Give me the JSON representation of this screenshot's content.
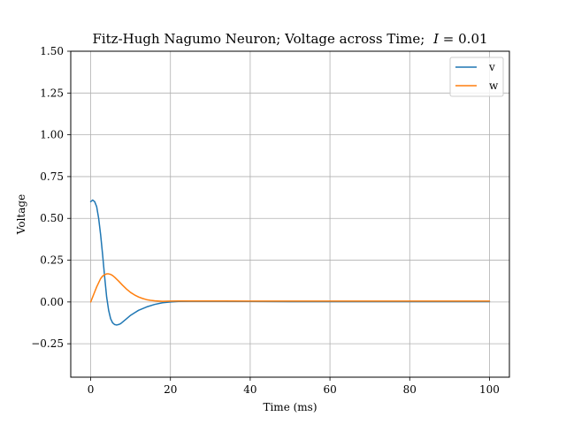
{
  "chart_data": {
    "type": "line",
    "title": "Fitz-Hugh Nagumo Neuron; Voltage across Time;",
    "title_math": {
      "var": "I",
      "rest": " = 0.01"
    },
    "xlabel": "Time (ms)",
    "ylabel": "Voltage",
    "xlim": [
      -5,
      105
    ],
    "ylim": [
      -0.45,
      1.5
    ],
    "x_ticks": [
      0,
      20,
      40,
      60,
      80,
      100
    ],
    "y_ticks": [
      -0.25,
      0.0,
      0.25,
      0.5,
      0.75,
      1.0,
      1.25,
      1.5
    ],
    "x_tick_labels": [
      "0",
      "20",
      "40",
      "60",
      "80",
      "100"
    ],
    "y_tick_labels": [
      "−0.25",
      "0.00",
      "0.25",
      "0.50",
      "0.75",
      "1.00",
      "1.25",
      "1.50"
    ],
    "grid": true,
    "legend_position": "top-right",
    "series": [
      {
        "name": "v",
        "color": "#1f77b4",
        "x": [
          0,
          0.5,
          1,
          1.5,
          2,
          2.5,
          3,
          3.5,
          4,
          4.5,
          5,
          5.5,
          6,
          6.5,
          7,
          7.5,
          8,
          9,
          10,
          11,
          12,
          14,
          16,
          18,
          20,
          22,
          25,
          30,
          40,
          50,
          60,
          70,
          80,
          90,
          100
        ],
        "values": [
          0.6,
          0.61,
          0.6,
          0.57,
          0.5,
          0.4,
          0.28,
          0.15,
          0.03,
          -0.05,
          -0.1,
          -0.125,
          -0.135,
          -0.138,
          -0.135,
          -0.13,
          -0.12,
          -0.1,
          -0.08,
          -0.065,
          -0.05,
          -0.03,
          -0.015,
          -0.005,
          0.0,
          0.003,
          0.004,
          0.004,
          0.003,
          0.002,
          0.002,
          0.002,
          0.002,
          0.002,
          0.002
        ]
      },
      {
        "name": "w",
        "color": "#ff7f0e",
        "x": [
          0,
          0.5,
          1,
          1.5,
          2,
          2.5,
          3,
          3.5,
          4,
          4.5,
          5,
          5.5,
          6,
          7,
          8,
          9,
          10,
          11,
          12,
          13,
          14,
          15,
          16,
          18,
          20,
          22,
          25,
          30,
          40,
          50,
          60,
          70,
          80,
          90,
          100
        ],
        "values": [
          0.0,
          0.03,
          0.06,
          0.09,
          0.115,
          0.14,
          0.155,
          0.163,
          0.168,
          0.168,
          0.165,
          0.158,
          0.148,
          0.125,
          0.1,
          0.077,
          0.057,
          0.042,
          0.03,
          0.021,
          0.014,
          0.01,
          0.007,
          0.004,
          0.005,
          0.006,
          0.006,
          0.006,
          0.005,
          0.005,
          0.005,
          0.005,
          0.005,
          0.005,
          0.005
        ]
      }
    ]
  }
}
